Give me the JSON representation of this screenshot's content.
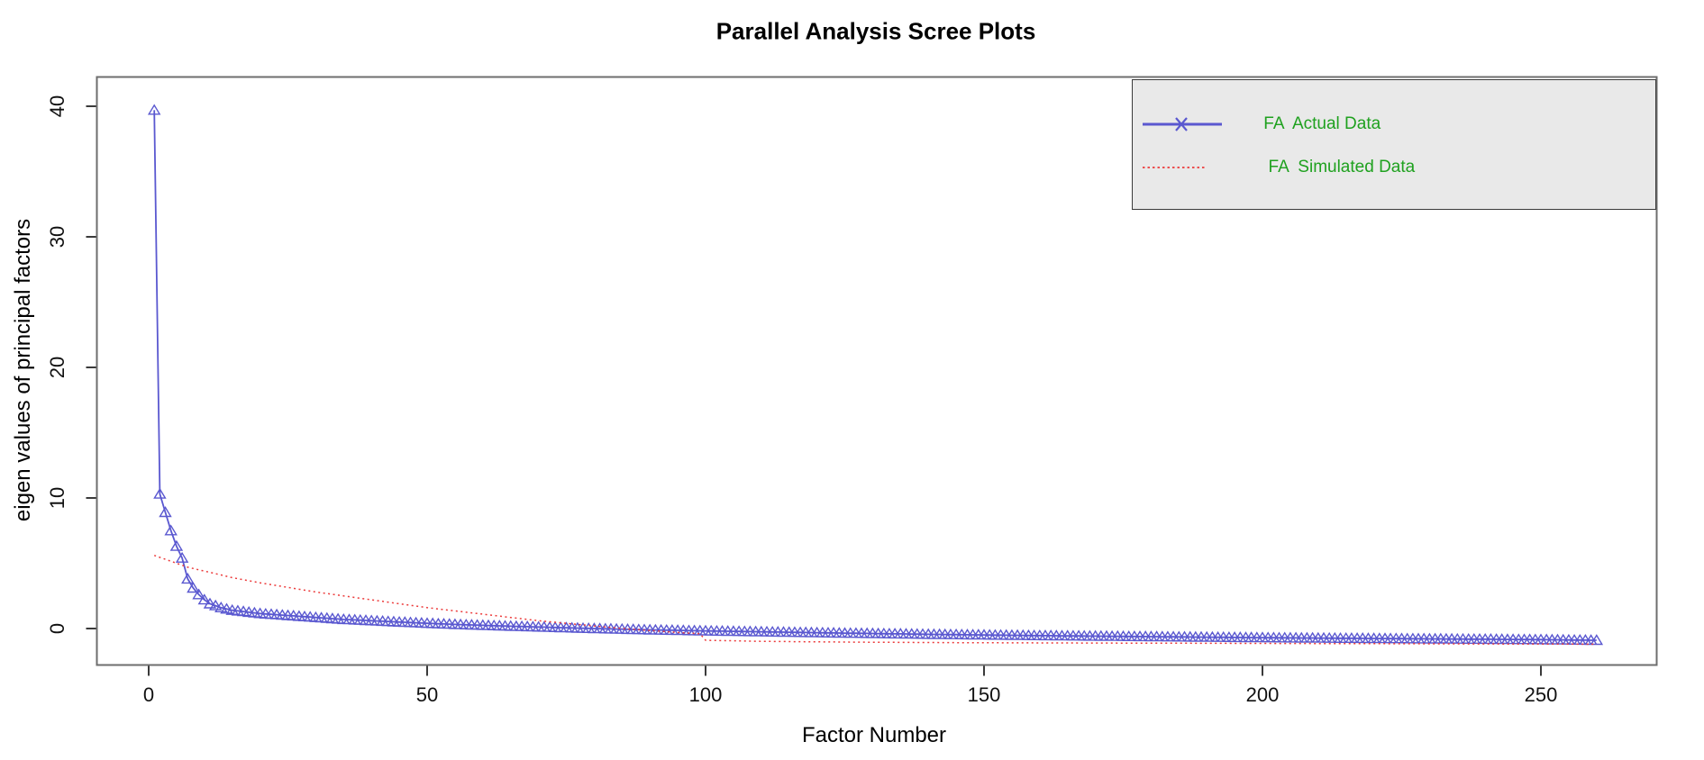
{
  "title": "Parallel Analysis Scree Plots",
  "axes": {
    "xlabel": "Factor Number",
    "ylabel": "eigen values of principal factors",
    "x_ticks": [
      0,
      50,
      100,
      150,
      200,
      250
    ],
    "y_ticks": [
      0,
      10,
      20,
      30,
      40
    ]
  },
  "colors": {
    "actual_blue": "#5A58D0",
    "simulated_red": "#EC3B3B",
    "legend_text_green": "#1FA11F",
    "legend_bg": "#E9E9E9",
    "frame_gray": "#6e6e6e",
    "tick_dark": "#3a3a3a"
  },
  "legend": {
    "items": [
      {
        "label": " FA  Actual Data",
        "series": "actual",
        "line": "solid",
        "marker": "x"
      },
      {
        "label": "  FA  Simulated Data",
        "series": "simulated",
        "line": "dotted",
        "marker": "none"
      }
    ]
  },
  "chart_data": {
    "type": "line",
    "title": "Parallel Analysis Scree Plots",
    "xlabel": "Factor Number",
    "ylabel": "eigen values of principal factors",
    "xlim": [
      -9,
      269
    ],
    "ylim": [
      -2.8,
      42.3
    ],
    "x_tick_values": [
      0,
      50,
      100,
      150,
      200,
      250
    ],
    "y_tick_values": [
      0,
      10,
      20,
      30,
      40
    ],
    "grid": false,
    "legend_position": "top-right",
    "n_factors": 260,
    "series": [
      {
        "name": "FA  Actual Data",
        "style": "solid blue line with open triangle markers at every factor 1-260",
        "anchor_x": [
          1,
          2,
          3,
          4,
          5,
          6,
          7,
          8,
          9,
          10,
          11,
          12,
          13,
          14,
          15,
          20,
          25,
          30,
          35,
          40,
          45,
          50,
          55,
          60,
          65,
          70,
          75,
          80,
          85,
          90,
          95,
          100,
          110,
          120,
          130,
          140,
          150,
          160,
          170,
          180,
          190,
          200,
          210,
          220,
          230,
          240,
          250,
          260
        ],
        "anchor_y": [
          39.7,
          10.3,
          8.9,
          7.5,
          6.3,
          5.4,
          3.8,
          3.1,
          2.6,
          2.2,
          1.9,
          1.75,
          1.6,
          1.5,
          1.4,
          1.15,
          1.0,
          0.85,
          0.7,
          0.6,
          0.5,
          0.4,
          0.32,
          0.25,
          0.18,
          0.12,
          0.06,
          0.0,
          -0.05,
          -0.1,
          -0.14,
          -0.18,
          -0.25,
          -0.32,
          -0.38,
          -0.44,
          -0.49,
          -0.54,
          -0.58,
          -0.62,
          -0.66,
          -0.7,
          -0.73,
          -0.76,
          -0.79,
          -0.82,
          -0.85,
          -0.9
        ]
      },
      {
        "name": "FA  Simulated Data",
        "style": "dotted red line, no markers",
        "anchor_x": [
          1,
          2,
          3,
          4,
          5,
          6,
          7,
          8,
          9,
          10,
          11,
          12,
          13,
          14,
          15,
          20,
          25,
          30,
          35,
          40,
          45,
          50,
          55,
          60,
          65,
          70,
          75,
          80,
          85,
          90,
          95,
          99,
          100,
          110,
          120,
          130,
          140,
          150,
          160,
          170,
          180,
          190,
          200,
          210,
          220,
          230,
          240,
          250,
          260
        ],
        "anchor_y": [
          5.6,
          5.45,
          5.3,
          5.15,
          5.0,
          4.85,
          4.7,
          4.6,
          4.5,
          4.4,
          4.3,
          4.2,
          4.1,
          4.0,
          3.9,
          3.5,
          3.15,
          2.8,
          2.5,
          2.2,
          1.9,
          1.6,
          1.35,
          1.1,
          0.85,
          0.6,
          0.4,
          0.2,
          0.0,
          -0.15,
          -0.3,
          -0.4,
          -0.9,
          -0.98,
          -1.02,
          -1.05,
          -1.07,
          -1.09,
          -1.1,
          -1.11,
          -1.12,
          -1.13,
          -1.14,
          -1.15,
          -1.16,
          -1.17,
          -1.18,
          -1.19,
          -1.2
        ]
      }
    ]
  }
}
